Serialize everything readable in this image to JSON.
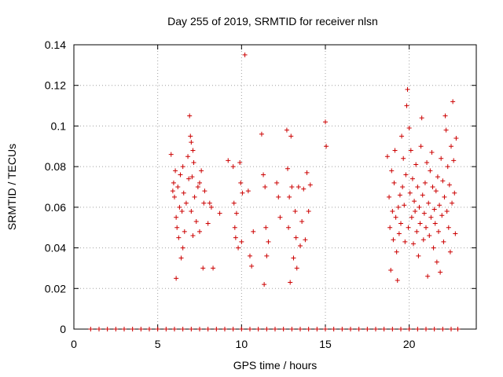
{
  "chart_data": {
    "type": "scatter",
    "title": "Day 255 of 2019, SRMTID for receiver nlsn",
    "xlabel": "GPS time / hours",
    "ylabel": "SRMTID / TECUs",
    "xlim": [
      0,
      24
    ],
    "ylim": [
      0,
      0.14
    ],
    "xticks": [
      0,
      5,
      10,
      15,
      20
    ],
    "xtick_labels": [
      "0",
      "5",
      "10",
      "15",
      "20"
    ],
    "yticks": [
      0,
      0.02,
      0.04,
      0.06,
      0.08,
      0.1,
      0.12,
      0.14
    ],
    "ytick_labels": [
      "0",
      "0.02",
      "0.04",
      "0.06",
      "0.08",
      "0.1",
      "0.12",
      "0.14"
    ],
    "grid": true,
    "legend": "none",
    "marker": "plus",
    "color": "#cc0000",
    "series": [
      {
        "points": [
          [
            5.8,
            0.086
          ],
          [
            5.9,
            0.068
          ],
          [
            5.95,
            0.072
          ],
          [
            6.0,
            0.065
          ],
          [
            6.05,
            0.078
          ],
          [
            6.1,
            0.055
          ],
          [
            6.1,
            0.025
          ],
          [
            6.15,
            0.05
          ],
          [
            6.2,
            0.07
          ],
          [
            6.25,
            0.045
          ],
          [
            6.3,
            0.06
          ],
          [
            6.35,
            0.076
          ],
          [
            6.4,
            0.035
          ],
          [
            6.45,
            0.058
          ],
          [
            6.5,
            0.08
          ],
          [
            6.5,
            0.04
          ],
          [
            6.55,
            0.067
          ],
          [
            6.6,
            0.048
          ],
          [
            6.7,
            0.062
          ],
          [
            6.8,
            0.085
          ],
          [
            6.85,
            0.074
          ],
          [
            6.9,
            0.105
          ],
          [
            6.95,
            0.095
          ],
          [
            7.0,
            0.092
          ],
          [
            7.0,
            0.058
          ],
          [
            7.05,
            0.075
          ],
          [
            7.1,
            0.088
          ],
          [
            7.1,
            0.046
          ],
          [
            7.15,
            0.082
          ],
          [
            7.2,
            0.065
          ],
          [
            7.3,
            0.053
          ],
          [
            7.4,
            0.07
          ],
          [
            7.5,
            0.072
          ],
          [
            7.5,
            0.048
          ],
          [
            7.6,
            0.078
          ],
          [
            7.7,
            0.03
          ],
          [
            7.75,
            0.062
          ],
          [
            7.8,
            0.068
          ],
          [
            8.0,
            0.052
          ],
          [
            8.1,
            0.062
          ],
          [
            8.2,
            0.06
          ],
          [
            8.3,
            0.03
          ],
          [
            8.7,
            0.057
          ],
          [
            9.2,
            0.083
          ],
          [
            9.5,
            0.08
          ],
          [
            9.55,
            0.062
          ],
          [
            9.6,
            0.05
          ],
          [
            9.65,
            0.045
          ],
          [
            9.7,
            0.057
          ],
          [
            9.8,
            0.04
          ],
          [
            9.9,
            0.082
          ],
          [
            9.95,
            0.072
          ],
          [
            10.0,
            0.043
          ],
          [
            10.05,
            0.067
          ],
          [
            10.2,
            0.135
          ],
          [
            10.4,
            0.068
          ],
          [
            10.5,
            0.036
          ],
          [
            10.6,
            0.031
          ],
          [
            10.7,
            0.048
          ],
          [
            11.2,
            0.096
          ],
          [
            11.3,
            0.076
          ],
          [
            11.35,
            0.022
          ],
          [
            11.4,
            0.07
          ],
          [
            11.45,
            0.05
          ],
          [
            11.5,
            0.036
          ],
          [
            11.6,
            0.043
          ],
          [
            12.1,
            0.072
          ],
          [
            12.2,
            0.065
          ],
          [
            12.3,
            0.055
          ],
          [
            12.7,
            0.098
          ],
          [
            12.75,
            0.079
          ],
          [
            12.8,
            0.05
          ],
          [
            12.85,
            0.065
          ],
          [
            12.9,
            0.023
          ],
          [
            12.95,
            0.095
          ],
          [
            13.0,
            0.07
          ],
          [
            13.1,
            0.035
          ],
          [
            13.2,
            0.058
          ],
          [
            13.25,
            0.045
          ],
          [
            13.3,
            0.03
          ],
          [
            13.4,
            0.07
          ],
          [
            13.5,
            0.041
          ],
          [
            13.6,
            0.053
          ],
          [
            13.7,
            0.069
          ],
          [
            13.8,
            0.044
          ],
          [
            13.9,
            0.077
          ],
          [
            14.0,
            0.058
          ],
          [
            14.1,
            0.071
          ],
          [
            15.0,
            0.102
          ],
          [
            15.05,
            0.09
          ],
          [
            18.7,
            0.085
          ],
          [
            18.8,
            0.065
          ],
          [
            18.85,
            0.05
          ],
          [
            18.9,
            0.029
          ],
          [
            18.95,
            0.078
          ],
          [
            19.0,
            0.058
          ],
          [
            19.05,
            0.044
          ],
          [
            19.1,
            0.072
          ],
          [
            19.15,
            0.088
          ],
          [
            19.2,
            0.055
          ],
          [
            19.25,
            0.038
          ],
          [
            19.3,
            0.024
          ],
          [
            19.35,
            0.06
          ],
          [
            19.4,
            0.047
          ],
          [
            19.45,
            0.066
          ],
          [
            19.5,
            0.052
          ],
          [
            19.55,
            0.095
          ],
          [
            19.6,
            0.07
          ],
          [
            19.65,
            0.084
          ],
          [
            19.7,
            0.061
          ],
          [
            19.75,
            0.043
          ],
          [
            19.8,
            0.076
          ],
          [
            19.85,
            0.11
          ],
          [
            19.9,
            0.118
          ],
          [
            19.95,
            0.05
          ],
          [
            20.0,
            0.099
          ],
          [
            20.05,
            0.067
          ],
          [
            20.1,
            0.088
          ],
          [
            20.15,
            0.055
          ],
          [
            20.2,
            0.074
          ],
          [
            20.25,
            0.042
          ],
          [
            20.3,
            0.063
          ],
          [
            20.35,
            0.058
          ],
          [
            20.4,
            0.081
          ],
          [
            20.45,
            0.048
          ],
          [
            20.5,
            0.07
          ],
          [
            20.55,
            0.036
          ],
          [
            20.6,
            0.06
          ],
          [
            20.65,
            0.052
          ],
          [
            20.7,
            0.09
          ],
          [
            20.75,
            0.104
          ],
          [
            20.8,
            0.066
          ],
          [
            20.85,
            0.044
          ],
          [
            20.9,
            0.057
          ],
          [
            20.95,
            0.072
          ],
          [
            21.0,
            0.05
          ],
          [
            21.05,
            0.082
          ],
          [
            21.1,
            0.026
          ],
          [
            21.15,
            0.062
          ],
          [
            21.2,
            0.046
          ],
          [
            21.25,
            0.078
          ],
          [
            21.3,
            0.055
          ],
          [
            21.35,
            0.087
          ],
          [
            21.4,
            0.07
          ],
          [
            21.45,
            0.04
          ],
          [
            21.5,
            0.059
          ],
          [
            21.55,
            0.052
          ],
          [
            21.6,
            0.068
          ],
          [
            21.65,
            0.033
          ],
          [
            21.7,
            0.075
          ],
          [
            21.75,
            0.048
          ],
          [
            21.8,
            0.061
          ],
          [
            21.85,
            0.028
          ],
          [
            21.9,
            0.084
          ],
          [
            21.95,
            0.056
          ],
          [
            22.0,
            0.073
          ],
          [
            22.05,
            0.043
          ],
          [
            22.1,
            0.065
          ],
          [
            22.15,
            0.105
          ],
          [
            22.2,
            0.098
          ],
          [
            22.25,
            0.058
          ],
          [
            22.3,
            0.08
          ],
          [
            22.35,
            0.05
          ],
          [
            22.4,
            0.071
          ],
          [
            22.45,
            0.038
          ],
          [
            22.5,
            0.09
          ],
          [
            22.55,
            0.062
          ],
          [
            22.6,
            0.112
          ],
          [
            22.65,
            0.083
          ],
          [
            22.7,
            0.067
          ],
          [
            22.75,
            0.047
          ],
          [
            22.8,
            0.094
          ],
          [
            1.0,
            0
          ],
          [
            1.5,
            0
          ],
          [
            2.0,
            0
          ],
          [
            2.5,
            0
          ],
          [
            3.0,
            0
          ],
          [
            3.5,
            0
          ],
          [
            4.0,
            0
          ],
          [
            4.5,
            0
          ],
          [
            5.0,
            0
          ],
          [
            5.5,
            0
          ],
          [
            6.0,
            0
          ],
          [
            6.5,
            0
          ],
          [
            7.0,
            0
          ],
          [
            7.5,
            0
          ],
          [
            8.0,
            0
          ],
          [
            8.5,
            0
          ],
          [
            9.0,
            0
          ],
          [
            9.5,
            0
          ],
          [
            10.0,
            0
          ],
          [
            10.5,
            0
          ],
          [
            11.0,
            0
          ],
          [
            11.5,
            0
          ],
          [
            12.0,
            0
          ],
          [
            12.5,
            0
          ],
          [
            13.0,
            0
          ],
          [
            13.5,
            0
          ],
          [
            14.0,
            0
          ],
          [
            14.5,
            0
          ],
          [
            15.0,
            0
          ],
          [
            15.5,
            0
          ],
          [
            16.0,
            0
          ],
          [
            16.5,
            0
          ],
          [
            17.0,
            0
          ],
          [
            17.5,
            0
          ],
          [
            18.0,
            0
          ],
          [
            18.5,
            0
          ],
          [
            19.0,
            0
          ],
          [
            19.5,
            0
          ],
          [
            20.0,
            0
          ],
          [
            20.5,
            0
          ],
          [
            21.0,
            0
          ],
          [
            21.5,
            0
          ],
          [
            22.0,
            0
          ],
          [
            22.5,
            0
          ],
          [
            22.9,
            0
          ]
        ]
      }
    ]
  }
}
